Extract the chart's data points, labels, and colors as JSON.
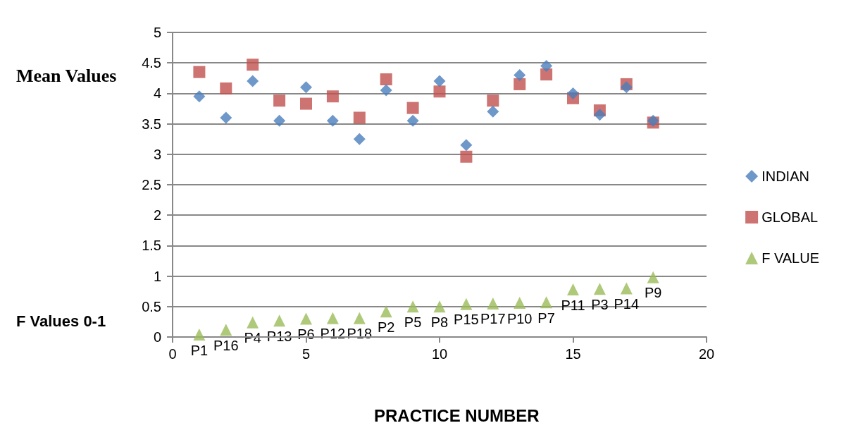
{
  "chart_data": {
    "type": "scatter",
    "ylabel": "Mean Values",
    "xlabel": "PRACTICE NUMBER",
    "x": [
      1,
      2,
      3,
      4,
      5,
      6,
      7,
      8,
      9,
      10,
      11,
      12,
      13,
      14,
      15,
      16,
      17,
      18
    ],
    "series": [
      {
        "name": "INDIAN",
        "color": "#4a7ebb",
        "marker": "diamond",
        "values": [
          3.95,
          3.6,
          4.2,
          3.55,
          4.1,
          3.55,
          3.25,
          4.05,
          3.55,
          4.2,
          3.15,
          3.7,
          4.3,
          4.45,
          4.0,
          3.65,
          4.1,
          3.55
        ]
      },
      {
        "name": "GLOBAL",
        "color": "#c0504d",
        "marker": "square",
        "values": [
          4.35,
          4.08,
          4.47,
          3.88,
          3.83,
          3.95,
          3.6,
          4.23,
          3.76,
          4.03,
          2.96,
          3.88,
          4.15,
          4.31,
          3.92,
          3.72,
          4.15,
          3.52
        ]
      },
      {
        "name": "F VALUE",
        "color": "#9bbb59",
        "marker": "triangle",
        "values": [
          0.04,
          0.12,
          0.24,
          0.27,
          0.3,
          0.31,
          0.31,
          0.42,
          0.5,
          0.5,
          0.54,
          0.55,
          0.56,
          0.57,
          0.78,
          0.79,
          0.8,
          0.98
        ]
      }
    ],
    "annotations": [
      "F Values 0-1",
      {
        "text": "P1",
        "x": 1,
        "y": 0.04
      },
      {
        "text": "P16",
        "x": 2,
        "y": 0.12
      },
      {
        "text": "P4",
        "x": 3,
        "y": 0.24
      },
      {
        "text": "P13",
        "x": 4,
        "y": 0.27
      },
      {
        "text": "P6",
        "x": 5,
        "y": 0.3
      },
      {
        "text": "P12",
        "x": 6,
        "y": 0.31
      },
      {
        "text": "P18",
        "x": 7,
        "y": 0.31
      },
      {
        "text": "P2",
        "x": 8,
        "y": 0.42
      },
      {
        "text": "P5",
        "x": 9,
        "y": 0.5
      },
      {
        "text": "P8",
        "x": 10,
        "y": 0.5
      },
      {
        "text": "P15",
        "x": 11,
        "y": 0.54
      },
      {
        "text": "P17",
        "x": 12,
        "y": 0.55
      },
      {
        "text": "P10",
        "x": 13,
        "y": 0.56
      },
      {
        "text": "P7",
        "x": 14,
        "y": 0.57
      },
      {
        "text": "P11",
        "x": 15,
        "y": 0.78
      },
      {
        "text": "P3",
        "x": 16,
        "y": 0.79
      },
      {
        "text": "P14",
        "x": 17,
        "y": 0.8
      },
      {
        "text": "P9",
        "x": 18,
        "y": 0.98
      }
    ],
    "xlim": [
      0,
      20
    ],
    "xticks": [
      0,
      5,
      10,
      15,
      20
    ],
    "ylim": [
      0,
      5
    ],
    "yticks": [
      0,
      0.5,
      1,
      1.5,
      2,
      2.5,
      3,
      3.5,
      4,
      4.5,
      5
    ],
    "grid": "y",
    "legend": "right"
  }
}
